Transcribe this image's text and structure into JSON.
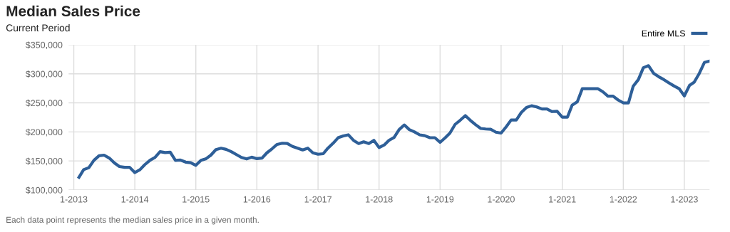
{
  "chart_data": {
    "type": "line",
    "title": "Median Sales Price",
    "subtitle": "Current Period",
    "x": [
      "2013-02",
      "2013-03",
      "2013-04",
      "2013-05",
      "2013-06",
      "2013-07",
      "2013-08",
      "2013-09",
      "2013-10",
      "2013-11",
      "2013-12",
      "2014-01",
      "2014-02",
      "2014-03",
      "2014-04",
      "2014-05",
      "2014-06",
      "2014-07",
      "2014-08",
      "2014-09",
      "2014-10",
      "2014-11",
      "2014-12",
      "2015-01",
      "2015-02",
      "2015-03",
      "2015-04",
      "2015-05",
      "2015-06",
      "2015-07",
      "2015-08",
      "2015-09",
      "2015-10",
      "2015-11",
      "2015-12",
      "2016-01",
      "2016-02",
      "2016-03",
      "2016-04",
      "2016-05",
      "2016-06",
      "2016-07",
      "2016-08",
      "2016-09",
      "2016-10",
      "2016-11",
      "2016-12",
      "2017-01",
      "2017-02",
      "2017-03",
      "2017-04",
      "2017-05",
      "2017-06",
      "2017-07",
      "2017-08",
      "2017-09",
      "2017-10",
      "2017-11",
      "2017-12",
      "2018-01",
      "2018-02",
      "2018-03",
      "2018-04",
      "2018-05",
      "2018-06",
      "2018-07",
      "2018-08",
      "2018-09",
      "2018-10",
      "2018-11",
      "2018-12",
      "2019-01",
      "2019-02",
      "2019-03",
      "2019-04",
      "2019-05",
      "2019-06",
      "2019-07",
      "2019-08",
      "2019-09",
      "2019-10",
      "2019-11",
      "2019-12",
      "2020-01",
      "2020-02",
      "2020-03",
      "2020-04",
      "2020-05",
      "2020-06",
      "2020-07",
      "2020-08",
      "2020-09",
      "2020-10",
      "2020-11",
      "2020-12",
      "2021-01",
      "2021-02",
      "2021-03",
      "2021-04",
      "2021-05",
      "2021-06",
      "2021-07",
      "2021-08",
      "2021-09",
      "2021-10",
      "2021-11",
      "2021-12",
      "2022-01",
      "2022-02",
      "2022-03",
      "2022-04",
      "2022-05",
      "2022-06",
      "2022-07",
      "2022-08",
      "2022-09",
      "2022-10",
      "2022-11",
      "2022-12",
      "2023-01",
      "2023-02",
      "2023-03",
      "2023-04",
      "2023-05",
      "2023-06"
    ],
    "series": [
      {
        "name": "Entire MLS",
        "color": "#2e5f98",
        "values": [
          122000,
          135000,
          138500,
          151000,
          159000,
          160000,
          155000,
          146500,
          140500,
          139000,
          139000,
          130000,
          135000,
          143500,
          151000,
          156000,
          166000,
          164500,
          165000,
          151000,
          151500,
          148000,
          147000,
          142500,
          151000,
          153500,
          160000,
          169500,
          172000,
          170000,
          166000,
          161000,
          156000,
          153500,
          156500,
          154000,
          155000,
          164000,
          171000,
          178500,
          180500,
          180000,
          175000,
          172000,
          169000,
          172000,
          164000,
          161500,
          162500,
          172000,
          180500,
          190000,
          193000,
          195000,
          185500,
          180000,
          183000,
          180000,
          185500,
          173000,
          177500,
          185500,
          190500,
          204000,
          212000,
          204000,
          200000,
          195000,
          193500,
          190000,
          190000,
          182000,
          190000,
          198000,
          213000,
          220000,
          228000,
          220000,
          212500,
          206000,
          205000,
          204500,
          199500,
          198000,
          209000,
          220500,
          220500,
          233500,
          242000,
          245000,
          243000,
          239500,
          239500,
          235000,
          235500,
          225500,
          225500,
          246000,
          252000,
          274500,
          274500,
          274500,
          274500,
          269000,
          261500,
          261500,
          255000,
          250000,
          250000,
          278500,
          290000,
          310500,
          314000,
          301000,
          295000,
          290000,
          284500,
          279000,
          274500,
          262000,
          280000,
          285500,
          301000,
          319500,
          322000
        ]
      }
    ],
    "xlim": [
      "2012-12",
      "2023-06"
    ],
    "xticks": [
      {
        "value": "2013-01",
        "label": "1-2013"
      },
      {
        "value": "2014-01",
        "label": "1-2014"
      },
      {
        "value": "2015-01",
        "label": "1-2015"
      },
      {
        "value": "2016-01",
        "label": "1-2016"
      },
      {
        "value": "2017-01",
        "label": "1-2017"
      },
      {
        "value": "2018-01",
        "label": "1-2018"
      },
      {
        "value": "2019-01",
        "label": "1-2019"
      },
      {
        "value": "2020-01",
        "label": "1-2020"
      },
      {
        "value": "2021-01",
        "label": "1-2021"
      },
      {
        "value": "2022-01",
        "label": "1-2022"
      },
      {
        "value": "2023-01",
        "label": "1-2023"
      }
    ],
    "ylim": [
      100000,
      350000
    ],
    "yticks": [
      {
        "value": 100000,
        "label": "$100,000"
      },
      {
        "value": 150000,
        "label": "$150,000"
      },
      {
        "value": 200000,
        "label": "$200,000"
      },
      {
        "value": 250000,
        "label": "$250,000"
      },
      {
        "value": 300000,
        "label": "$300,000"
      },
      {
        "value": 350000,
        "label": "$350,000"
      }
    ],
    "grid": true,
    "legend": "top right",
    "marker": "none",
    "line_style": "solid",
    "annotations": [
      "Each data point represents the median sales price in a given month."
    ]
  }
}
